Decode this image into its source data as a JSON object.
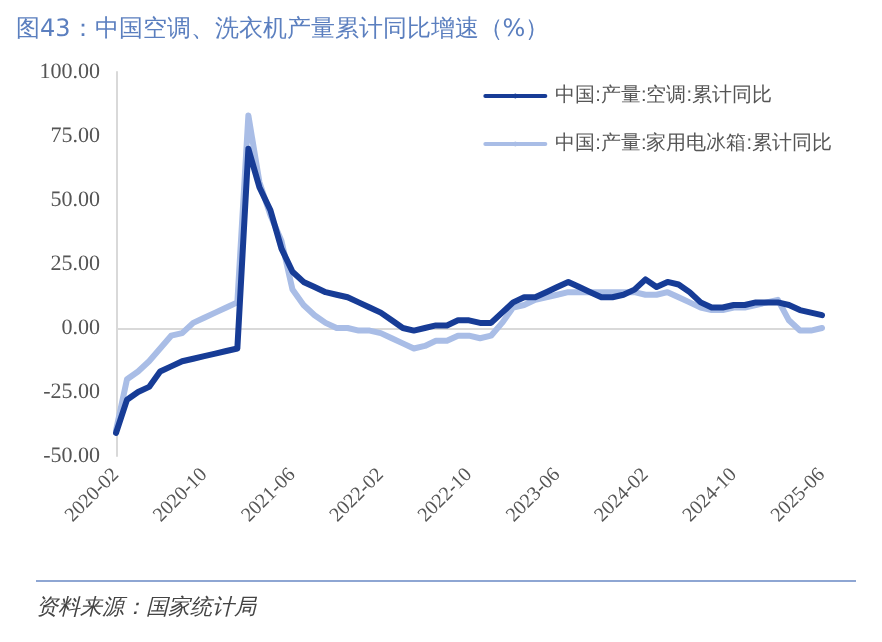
{
  "chart_data": {
    "type": "line",
    "title": "图43：中国空调、洗衣机产量累计同比增速（%）",
    "annotations": [
      "资料来源：国家统计局"
    ],
    "categories": [
      "2020-02",
      null,
      null,
      null,
      null,
      null,
      null,
      null,
      "2020-10",
      null,
      null,
      null,
      null,
      null,
      null,
      null,
      "2021-06",
      null,
      null,
      null,
      null,
      null,
      null,
      null,
      "2022-02",
      null,
      null,
      null,
      null,
      null,
      null,
      null,
      "2022-10",
      null,
      null,
      null,
      null,
      null,
      null,
      null,
      "2023-06",
      null,
      null,
      null,
      null,
      null,
      null,
      null,
      "2024-02",
      null,
      null,
      null,
      null,
      null,
      null,
      null,
      "2024-10",
      null,
      null,
      null,
      null,
      null,
      null,
      null,
      "2025-06"
    ],
    "series": [
      {
        "name": "中国:产量:空调:累计同比",
        "color": "#173c96",
        "values": [
          -41,
          -28,
          -25,
          -23,
          -17,
          -15,
          -13,
          -12,
          -11,
          -10,
          -9,
          -8,
          70,
          55,
          46,
          31,
          22,
          18,
          16,
          14,
          13,
          12,
          10,
          8,
          6,
          3,
          0,
          -1,
          0,
          1,
          1,
          3,
          3,
          2,
          2,
          6,
          10,
          12,
          12,
          14,
          16,
          18,
          16,
          14,
          12,
          12,
          13,
          15,
          19,
          16,
          18,
          17,
          14,
          10,
          8,
          8,
          9,
          9,
          10,
          10,
          10,
          9,
          7,
          6,
          5
        ]
      },
      {
        "name": "中国:产量:家用电冰箱:累计同比",
        "color": "#a9bde6",
        "values": [
          -40,
          -20,
          -17,
          -13,
          -8,
          -3,
          -2,
          2,
          4,
          6,
          8,
          10,
          83,
          57,
          44,
          34,
          15,
          9,
          5,
          2,
          0,
          0,
          -1,
          -1,
          -2,
          -4,
          -6,
          -8,
          -7,
          -5,
          -5,
          -3,
          -3,
          -4,
          -3,
          2,
          8,
          9,
          11,
          12,
          13,
          14,
          14,
          14,
          14,
          14,
          14,
          14,
          13,
          13,
          14,
          12,
          10,
          8,
          7,
          7,
          8,
          8,
          9,
          10,
          11,
          3,
          -1,
          -1,
          0
        ]
      }
    ],
    "ylim": [
      -50,
      100
    ],
    "yticks": [
      {
        "value": -50,
        "label": "-50.00"
      },
      {
        "value": -25,
        "label": "-25.00"
      },
      {
        "value": 0,
        "label": "0.00"
      },
      {
        "value": 25,
        "label": "25.00"
      },
      {
        "value": 50,
        "label": "50.00"
      },
      {
        "value": 75,
        "label": "75.00"
      },
      {
        "value": 100,
        "label": "100.00"
      }
    ],
    "ref_lines": [
      {
        "axis": "y",
        "value": 0,
        "color": "#d9d9d9"
      }
    ],
    "grid": false,
    "legend": "top right",
    "marker": "none",
    "line_style": "solid"
  }
}
